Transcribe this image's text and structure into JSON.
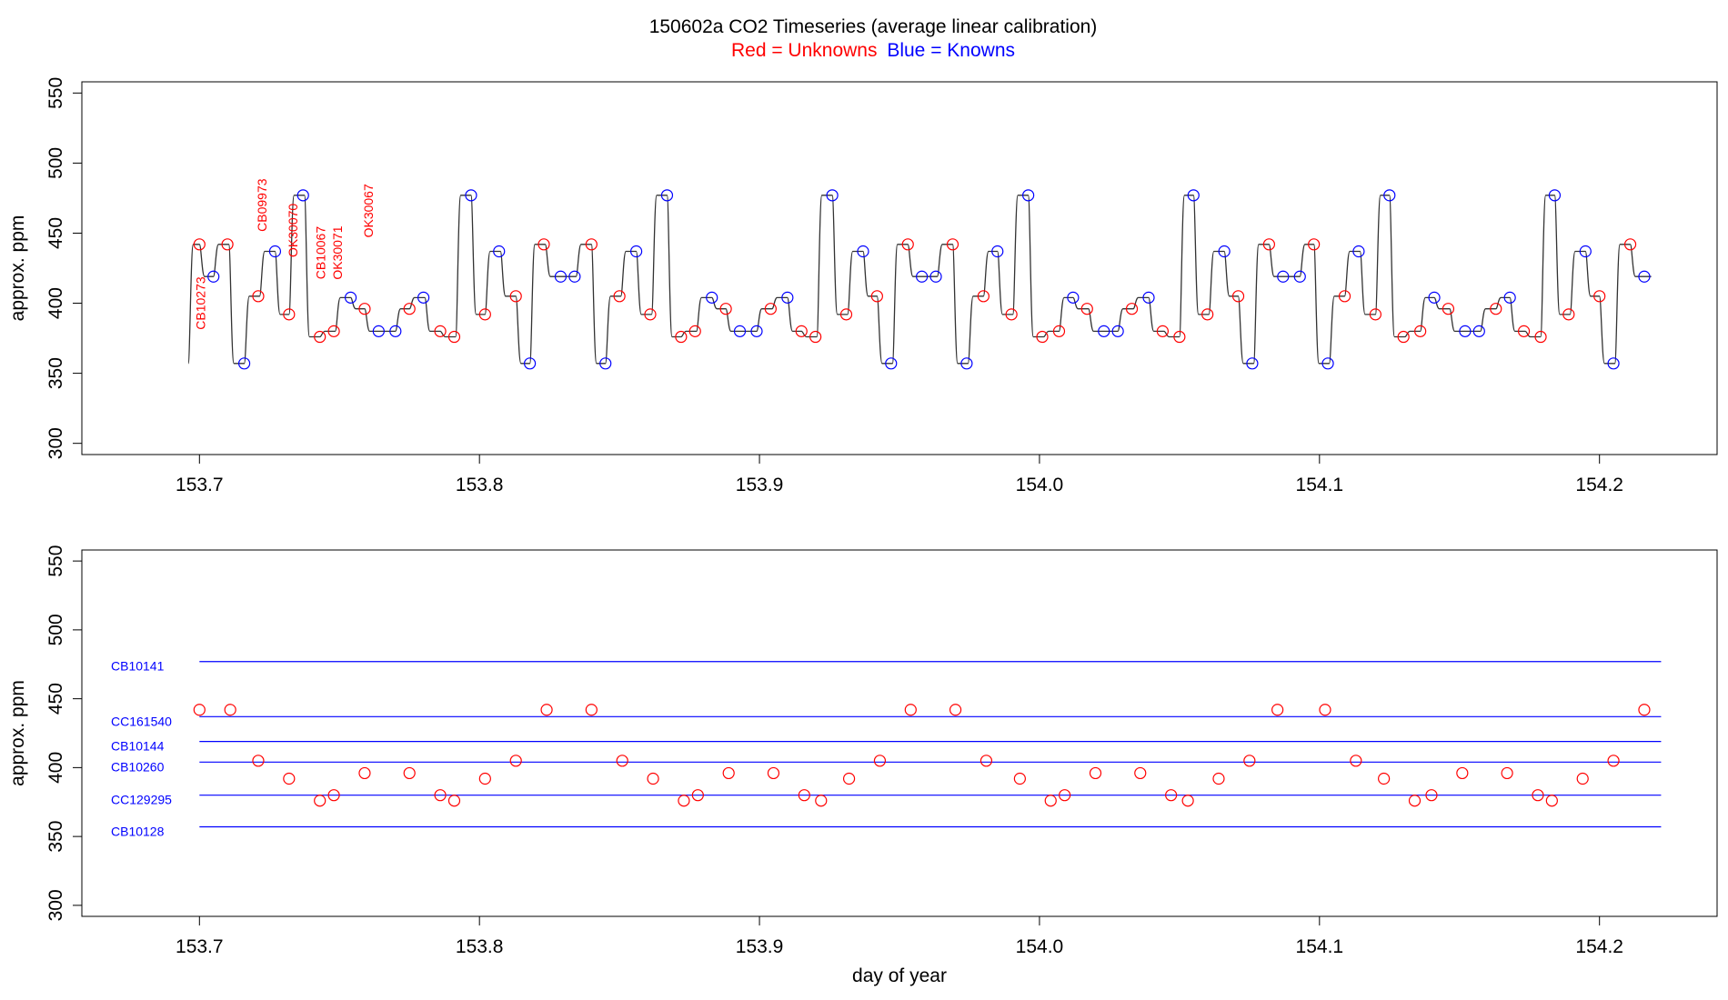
{
  "header": {
    "title": "150602a   CO2 Timeseries (average linear calibration)",
    "legend_red": "Red = Unknowns",
    "legend_blue": "Blue = Knowns"
  },
  "colors": {
    "unknown": "#ff0000",
    "known": "#0000ff",
    "trace": "#333333",
    "axis": "#000000"
  },
  "chart_data": [
    {
      "type": "line",
      "xlabel": "",
      "ylabel": "approx. ppm",
      "xlim": [
        153.658,
        154.242
      ],
      "ylim": [
        292,
        558
      ],
      "xticks": [
        "153.7",
        "153.8",
        "153.9",
        "154.0",
        "154.1",
        "154.2"
      ],
      "xtick_values": [
        153.7,
        153.8,
        153.9,
        154.0,
        154.1,
        154.2
      ],
      "yticks": [
        "300",
        "350",
        "400",
        "450",
        "500",
        "550"
      ],
      "ytick_values": [
        300,
        350,
        400,
        450,
        500,
        550
      ],
      "trace_start": [
        153.696,
        357
      ],
      "points": [
        [
          153.7,
          442,
          "u"
        ],
        [
          153.705,
          419,
          "k"
        ],
        [
          153.71,
          442,
          "u"
        ],
        [
          153.716,
          357,
          "k"
        ],
        [
          153.721,
          405,
          "u"
        ],
        [
          153.727,
          437,
          "k"
        ],
        [
          153.732,
          392,
          "u"
        ],
        [
          153.737,
          477,
          "k"
        ],
        [
          153.743,
          376,
          "u"
        ],
        [
          153.748,
          380,
          "u"
        ],
        [
          153.754,
          404,
          "k"
        ],
        [
          153.759,
          396,
          "u"
        ],
        [
          153.764,
          380,
          "k"
        ],
        [
          153.77,
          380,
          "k"
        ],
        [
          153.775,
          396,
          "u"
        ],
        [
          153.78,
          404,
          "k"
        ],
        [
          153.786,
          380,
          "u"
        ],
        [
          153.791,
          376,
          "u"
        ],
        [
          153.797,
          477,
          "k"
        ],
        [
          153.802,
          392,
          "u"
        ],
        [
          153.807,
          437,
          "k"
        ],
        [
          153.813,
          405,
          "u"
        ],
        [
          153.818,
          357,
          "k"
        ],
        [
          153.823,
          442,
          "u"
        ],
        [
          153.829,
          419,
          "k"
        ],
        [
          153.834,
          419,
          "k"
        ],
        [
          153.84,
          442,
          "u"
        ],
        [
          153.845,
          357,
          "k"
        ],
        [
          153.85,
          405,
          "u"
        ],
        [
          153.856,
          437,
          "k"
        ],
        [
          153.861,
          392,
          "u"
        ],
        [
          153.867,
          477,
          "k"
        ],
        [
          153.872,
          376,
          "u"
        ],
        [
          153.877,
          380,
          "u"
        ],
        [
          153.883,
          404,
          "k"
        ],
        [
          153.888,
          396,
          "u"
        ],
        [
          153.893,
          380,
          "k"
        ],
        [
          153.899,
          380,
          "k"
        ],
        [
          153.904,
          396,
          "u"
        ],
        [
          153.91,
          404,
          "k"
        ],
        [
          153.915,
          380,
          "u"
        ],
        [
          153.92,
          376,
          "u"
        ],
        [
          153.926,
          477,
          "k"
        ],
        [
          153.931,
          392,
          "u"
        ],
        [
          153.937,
          437,
          "k"
        ],
        [
          153.942,
          405,
          "u"
        ],
        [
          153.947,
          357,
          "k"
        ],
        [
          153.953,
          442,
          "u"
        ],
        [
          153.958,
          419,
          "k"
        ],
        [
          153.963,
          419,
          "k"
        ],
        [
          153.969,
          442,
          "u"
        ],
        [
          153.974,
          357,
          "k"
        ],
        [
          153.98,
          405,
          "u"
        ],
        [
          153.985,
          437,
          "k"
        ],
        [
          153.99,
          392,
          "u"
        ],
        [
          153.996,
          477,
          "k"
        ],
        [
          154.001,
          376,
          "u"
        ],
        [
          154.007,
          380,
          "u"
        ],
        [
          154.012,
          404,
          "k"
        ],
        [
          154.017,
          396,
          "u"
        ],
        [
          154.023,
          380,
          "k"
        ],
        [
          154.028,
          380,
          "k"
        ],
        [
          154.033,
          396,
          "u"
        ],
        [
          154.039,
          404,
          "k"
        ],
        [
          154.044,
          380,
          "u"
        ],
        [
          154.05,
          376,
          "u"
        ],
        [
          154.055,
          477,
          "k"
        ],
        [
          154.06,
          392,
          "u"
        ],
        [
          154.066,
          437,
          "k"
        ],
        [
          154.071,
          405,
          "u"
        ],
        [
          154.076,
          357,
          "k"
        ],
        [
          154.082,
          442,
          "u"
        ],
        [
          154.087,
          419,
          "k"
        ],
        [
          154.093,
          419,
          "k"
        ],
        [
          154.098,
          442,
          "u"
        ],
        [
          154.103,
          357,
          "k"
        ],
        [
          154.109,
          405,
          "u"
        ],
        [
          154.114,
          437,
          "k"
        ],
        [
          154.12,
          392,
          "u"
        ],
        [
          154.125,
          477,
          "k"
        ],
        [
          154.13,
          376,
          "u"
        ],
        [
          154.136,
          380,
          "u"
        ],
        [
          154.141,
          404,
          "k"
        ],
        [
          154.146,
          396,
          "u"
        ],
        [
          154.152,
          380,
          "k"
        ],
        [
          154.157,
          380,
          "k"
        ],
        [
          154.163,
          396,
          "u"
        ],
        [
          154.168,
          404,
          "k"
        ],
        [
          154.173,
          380,
          "u"
        ],
        [
          154.179,
          376,
          "u"
        ],
        [
          154.184,
          477,
          "k"
        ],
        [
          154.189,
          392,
          "u"
        ],
        [
          154.195,
          437,
          "k"
        ],
        [
          154.2,
          405,
          "u"
        ],
        [
          154.205,
          357,
          "k"
        ],
        [
          154.211,
          442,
          "u"
        ],
        [
          154.216,
          419,
          "k"
        ]
      ],
      "annotations": [
        {
          "text": "CB10273",
          "x": 153.7,
          "y": 400
        },
        {
          "text": "CB09973",
          "x": 153.722,
          "y": 470
        },
        {
          "text": "OK30070",
          "x": 153.733,
          "y": 452
        },
        {
          "text": "CB10067",
          "x": 153.743,
          "y": 436
        },
        {
          "text": "OK30071",
          "x": 153.749,
          "y": 436
        },
        {
          "text": "OK30067",
          "x": 153.76,
          "y": 466
        }
      ]
    },
    {
      "type": "scatter",
      "xlabel": "day of year",
      "ylabel": "approx. ppm",
      "xlim": [
        153.658,
        154.242
      ],
      "ylim": [
        292,
        558
      ],
      "xticks": [
        "153.7",
        "153.8",
        "153.9",
        "154.0",
        "154.1",
        "154.2"
      ],
      "xtick_values": [
        153.7,
        153.8,
        153.9,
        154.0,
        154.1,
        154.2
      ],
      "yticks": [
        "300",
        "350",
        "400",
        "450",
        "500",
        "550"
      ],
      "ytick_values": [
        300,
        350,
        400,
        450,
        500,
        550
      ],
      "reference_lines": [
        {
          "name": "CB10141",
          "value": 477
        },
        {
          "name": "CC161540",
          "value": 437
        },
        {
          "name": "CB10144",
          "value": 419
        },
        {
          "name": "CB10260",
          "value": 404
        },
        {
          "name": "CC129295",
          "value": 380
        },
        {
          "name": "CB10128",
          "value": 357
        }
      ],
      "line_x_range": [
        153.7,
        154.222
      ],
      "unknowns": [
        [
          153.7,
          442
        ],
        [
          153.711,
          442
        ],
        [
          153.721,
          405
        ],
        [
          153.732,
          392
        ],
        [
          153.743,
          376
        ],
        [
          153.748,
          380
        ],
        [
          153.759,
          396
        ],
        [
          153.775,
          396
        ],
        [
          153.786,
          380
        ],
        [
          153.791,
          376
        ],
        [
          153.802,
          392
        ],
        [
          153.813,
          405
        ],
        [
          153.824,
          442
        ],
        [
          153.84,
          442
        ],
        [
          153.851,
          405
        ],
        [
          153.862,
          392
        ],
        [
          153.873,
          376
        ],
        [
          153.878,
          380
        ],
        [
          153.889,
          396
        ],
        [
          153.905,
          396
        ],
        [
          153.916,
          380
        ],
        [
          153.922,
          376
        ],
        [
          153.932,
          392
        ],
        [
          153.943,
          405
        ],
        [
          153.954,
          442
        ],
        [
          153.97,
          442
        ],
        [
          153.981,
          405
        ],
        [
          153.993,
          392
        ],
        [
          154.004,
          376
        ],
        [
          154.009,
          380
        ],
        [
          154.02,
          396
        ],
        [
          154.036,
          396
        ],
        [
          154.047,
          380
        ],
        [
          154.053,
          376
        ],
        [
          154.064,
          392
        ],
        [
          154.075,
          405
        ],
        [
          154.085,
          442
        ],
        [
          154.102,
          442
        ],
        [
          154.113,
          405
        ],
        [
          154.123,
          392
        ],
        [
          154.134,
          376
        ],
        [
          154.14,
          380
        ],
        [
          154.151,
          396
        ],
        [
          154.167,
          396
        ],
        [
          154.178,
          380
        ],
        [
          154.183,
          376
        ],
        [
          154.194,
          392
        ],
        [
          154.205,
          405
        ],
        [
          154.216,
          442
        ]
      ]
    }
  ]
}
